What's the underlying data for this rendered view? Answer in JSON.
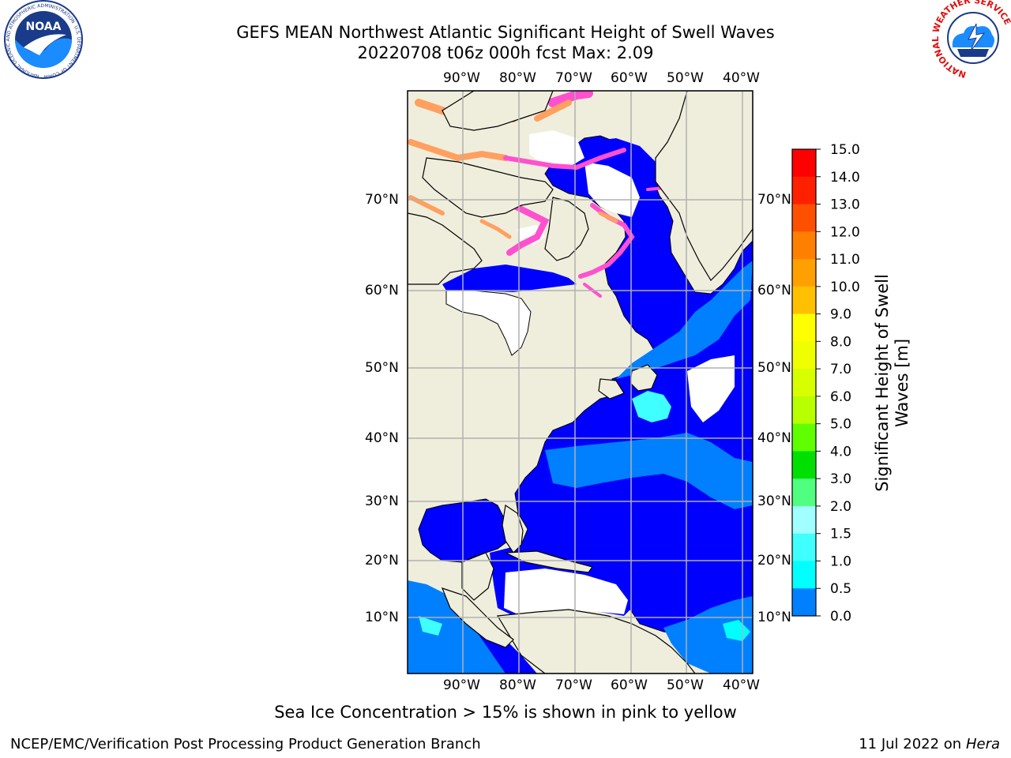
{
  "header": {
    "title_line1": "GEFS MEAN Northwest Atlantic Significant Height of Swell Waves",
    "title_line2": "20220708 t06z 000h fcst   Max: 2.09"
  },
  "logos": {
    "noaa_text": "NOAA",
    "noaa_ring_text": "NATIONAL OCEANIC AND ATMOSPHERIC ADMINISTRATION",
    "noaa_ring_bottom": "U.S. DEPARTMENT OF COMMERCE",
    "nws_ring_text": "NATIONAL WEATHER SERVICE"
  },
  "map": {
    "lon_labels": [
      "90°W",
      "80°W",
      "70°W",
      "60°W",
      "50°W",
      "40°W"
    ],
    "lat_labels": [
      "70°N",
      "60°N",
      "50°N",
      "40°N",
      "30°N",
      "20°N",
      "10°N"
    ],
    "colors": {
      "land": "#efeedc",
      "ocean_low": "#0000ff",
      "ocean_mid": "#0080ff",
      "ocean_high": "#00ffff",
      "ocean_high2": "#40ffff",
      "ice_pink": "#ff50d0",
      "ice_orange": "#ffa060",
      "grid": "#b0b0b0"
    }
  },
  "colorbar": {
    "label_line1": "Significant Height of Swell",
    "label_line2": "Waves [m]",
    "ticks": [
      "15.0",
      "14.0",
      "13.0",
      "12.0",
      "11.0",
      "10.0",
      "9.0",
      "8.0",
      "7.0",
      "6.0",
      "5.0",
      "4.0",
      "3.0",
      "2.0",
      "1.5",
      "1.0",
      "0.5",
      "0.0"
    ],
    "colors": [
      "#ff0000",
      "#ff2000",
      "#ff5000",
      "#ff8000",
      "#ffa000",
      "#ffc000",
      "#ffff00",
      "#f0ff00",
      "#d8ff00",
      "#b8ff00",
      "#60ff00",
      "#00e000",
      "#50ff80",
      "#a0ffff",
      "#40ffff",
      "#00ffff",
      "#0080ff",
      "#0000ff"
    ]
  },
  "footer": {
    "caption": "Sea Ice Concentration > 15% is shown in pink to yellow",
    "credit": "NCEP/EMC/Verification Post Processing Product Generation Branch",
    "date_text": "11 Jul 2022 on ",
    "host": "Hera"
  }
}
